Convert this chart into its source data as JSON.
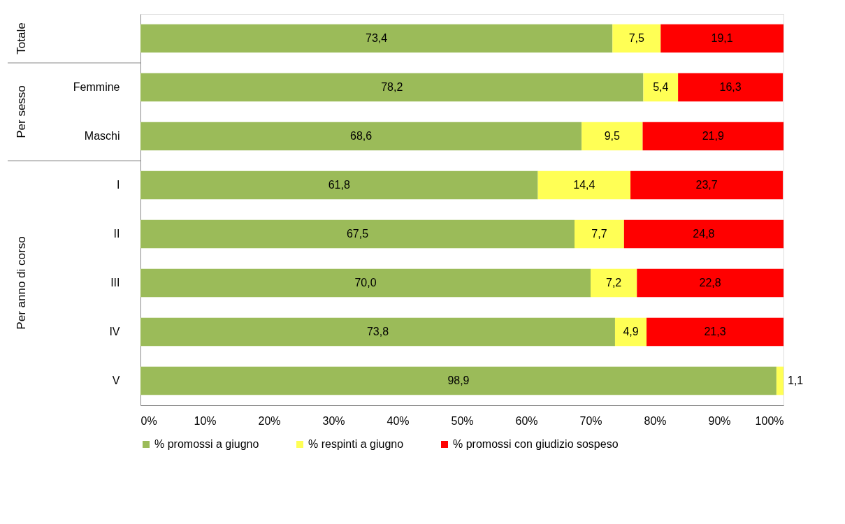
{
  "chart_data": {
    "type": "bar",
    "orientation": "horizontal",
    "stacked": true,
    "categories": [
      null,
      "Femmine",
      "Maschi",
      "I",
      "II",
      "III",
      "IV",
      "V"
    ],
    "series": [
      {
        "name": "% promossi a giugno",
        "color": "#9bbb59",
        "values": [
          73.4,
          78.2,
          68.6,
          61.8,
          67.5,
          70.0,
          73.8,
          98.9
        ],
        "value_labels": [
          "73,4",
          "78,2",
          "68,6",
          "61,8",
          "67,5",
          "70,0",
          "73,8",
          "98,9"
        ]
      },
      {
        "name": "% respinti a giugno",
        "color": "#ffff55",
        "values": [
          7.5,
          5.4,
          9.5,
          14.4,
          7.7,
          7.2,
          4.9,
          1.1
        ],
        "value_labels": [
          "7,5",
          "5,4",
          "9,5",
          "14,4",
          "7,7",
          "7,2",
          "4,9",
          "1,1"
        ]
      },
      {
        "name": "% promossi con giudizio sospeso",
        "color": "#ff0000",
        "values": [
          19.1,
          16.3,
          21.9,
          23.7,
          24.8,
          22.8,
          21.3,
          null
        ],
        "value_labels": [
          "19,1",
          "16,3",
          "21,9",
          "23,7",
          "24,8",
          "22,8",
          "21,3",
          null
        ]
      }
    ],
    "xlim": [
      0,
      100
    ],
    "xticks": [
      {
        "value": 0,
        "label": "0%"
      },
      {
        "value": 10,
        "label": "10%"
      },
      {
        "value": 20,
        "label": "20%"
      },
      {
        "value": 30,
        "label": "30%"
      },
      {
        "value": 40,
        "label": "40%"
      },
      {
        "value": 50,
        "label": "50%"
      },
      {
        "value": 60,
        "label": "60%"
      },
      {
        "value": 70,
        "label": "70%"
      },
      {
        "value": 80,
        "label": "80%"
      },
      {
        "value": 90,
        "label": "90%"
      },
      {
        "value": 100,
        "label": "100%"
      }
    ],
    "annotations": [
      "Totale",
      "Per sesso",
      "Per anno di corso"
    ],
    "grid": false,
    "legend": "bottom"
  }
}
